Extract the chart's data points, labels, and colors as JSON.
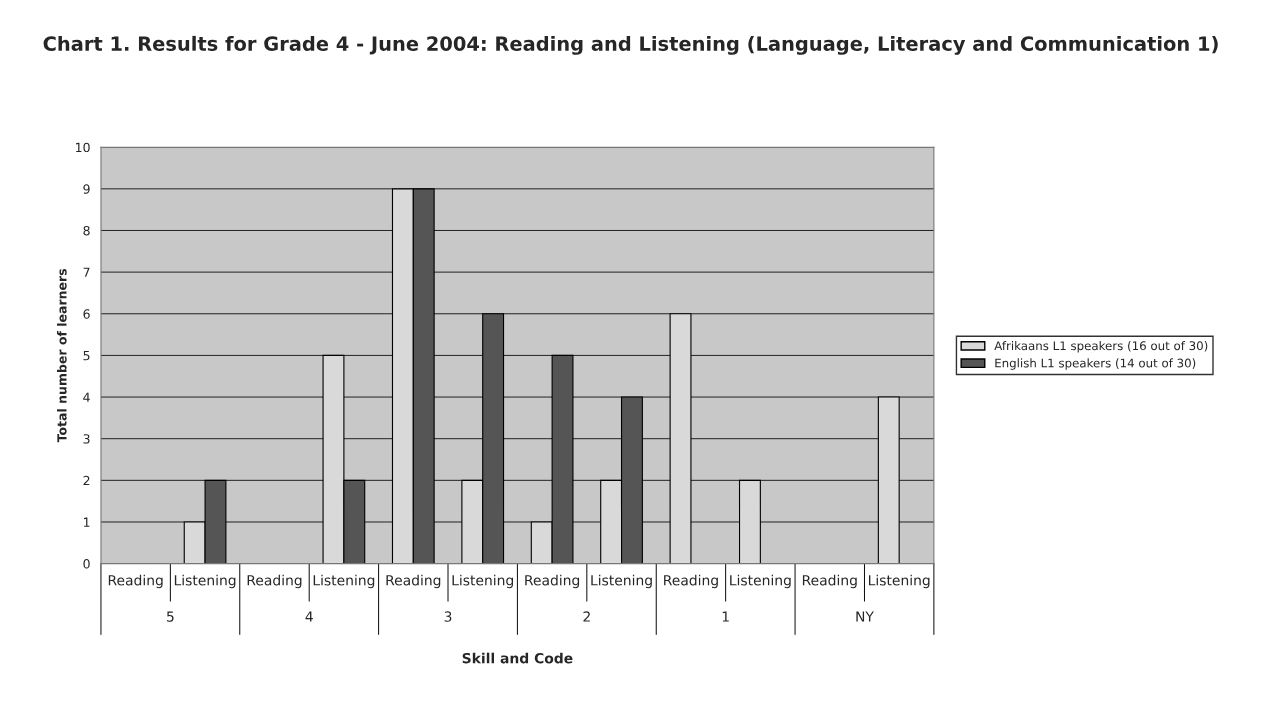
{
  "chart_data": {
    "type": "bar",
    "title": "Chart 1. Results for Grade 4 - June 2004: Reading and Listening (Language, Literacy and Communication 1)",
    "xlabel": "Skill and Code",
    "ylabel": "Total number of learners",
    "categories": [
      "Reading",
      "Listening",
      "Reading",
      "Listening",
      "Reading",
      "Listening",
      "Reading",
      "Listening",
      "Reading",
      "Listening",
      "Reading",
      "Listening"
    ],
    "annotations": [
      "5",
      "4",
      "3",
      "2",
      "1",
      "NY"
    ],
    "series": [
      {
        "name": "Afrikaans L1 speakers (16 out of 30)",
        "color": "#d9d9d9",
        "values": [
          null,
          1,
          null,
          5,
          9,
          2,
          1,
          2,
          6,
          2,
          null,
          4
        ]
      },
      {
        "name": "English L1 speakers (14 out of 30)",
        "color": "#555555",
        "values": [
          null,
          2,
          null,
          2,
          9,
          6,
          5,
          4,
          null,
          null,
          null,
          null
        ]
      }
    ],
    "ylim": [
      0,
      10
    ],
    "yticks": [
      0,
      1,
      2,
      3,
      4,
      5,
      6,
      7,
      8,
      9,
      10
    ],
    "grid": "y",
    "legend": "right"
  }
}
